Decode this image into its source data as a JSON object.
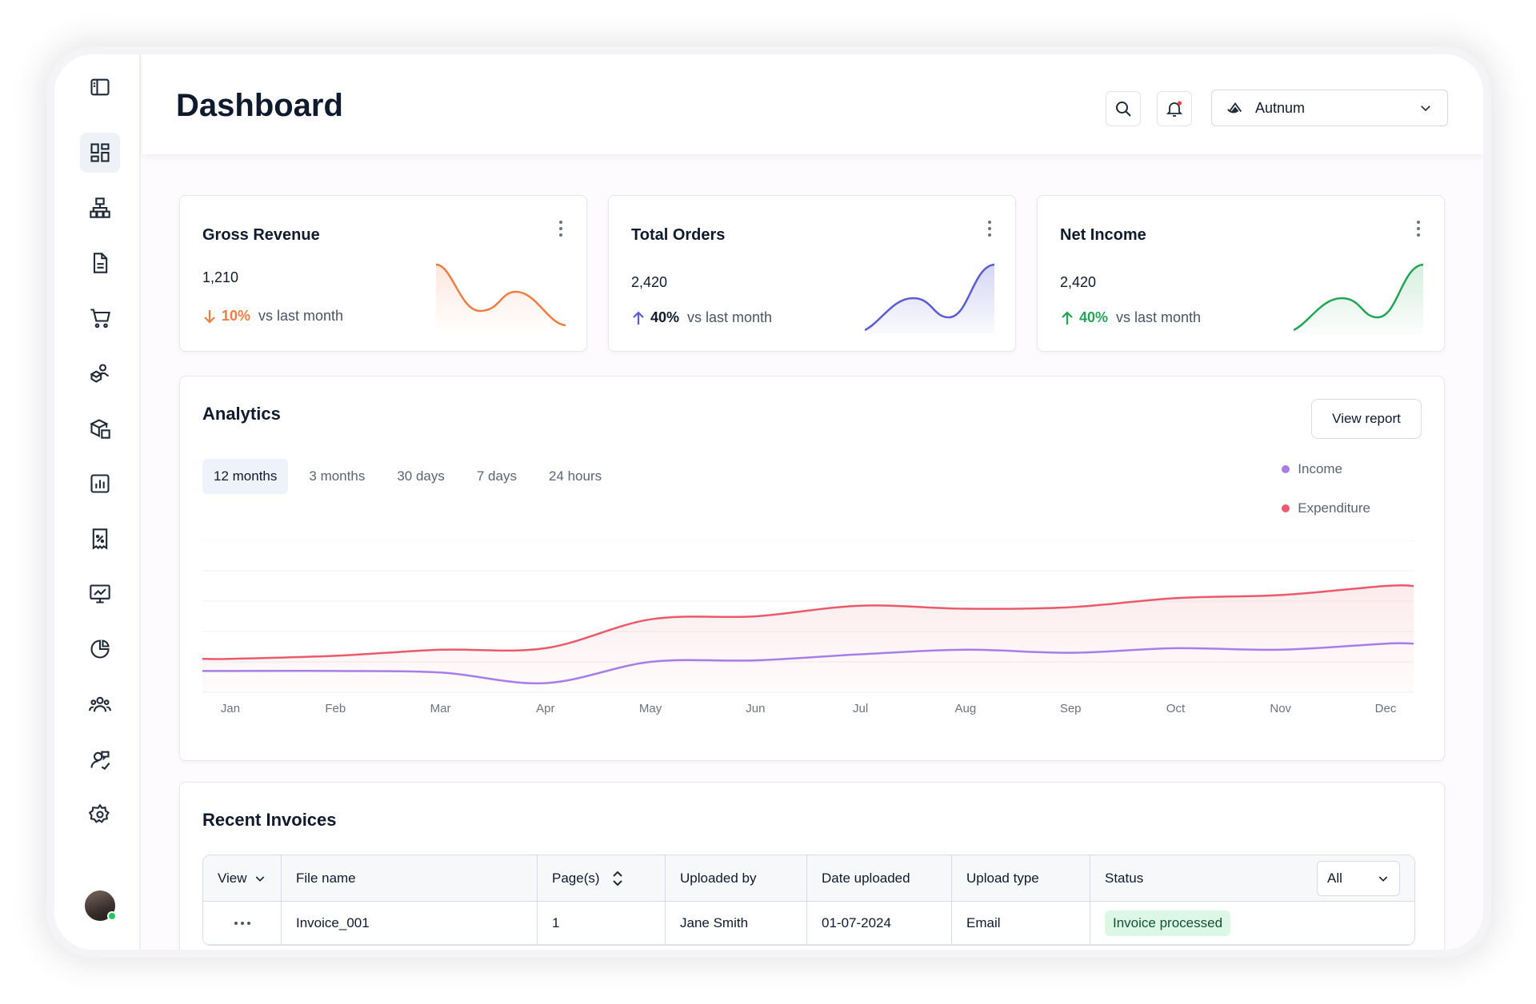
{
  "header": {
    "title": "Dashboard",
    "org_selector": {
      "value": "Autnum"
    },
    "notification_dot_color": "#ef4444"
  },
  "sidebar": {
    "items": [
      {
        "icon": "dashboard-icon",
        "active": true
      },
      {
        "icon": "hierarchy-icon"
      },
      {
        "icon": "document-icon"
      },
      {
        "icon": "cart-icon"
      },
      {
        "icon": "supplier-icon"
      },
      {
        "icon": "package-icon"
      },
      {
        "icon": "report-icon"
      },
      {
        "icon": "tax-receipt-icon"
      },
      {
        "icon": "presentation-icon"
      },
      {
        "icon": "pie-chart-icon"
      },
      {
        "icon": "team-icon"
      },
      {
        "icon": "customer-support-icon"
      },
      {
        "icon": "settings-icon"
      }
    ]
  },
  "kpis": [
    {
      "title": "Gross Revenue",
      "value": "1,210",
      "delta": "10%",
      "direction": "down",
      "comparison": "vs last month",
      "color": "#f07c42"
    },
    {
      "title": "Total Orders",
      "value": "2,420",
      "delta": "40%",
      "direction": "up",
      "comparison": "vs last month",
      "color": "#5b5bd6"
    },
    {
      "title": "Net Income",
      "value": "2,420",
      "delta": "40%",
      "direction": "up",
      "comparison": "vs last month",
      "color": "#22a555"
    }
  ],
  "analytics": {
    "title": "Analytics",
    "view_report_label": "View report",
    "tabs": [
      "12 months",
      "3 months",
      "30 days",
      "7 days",
      "24 hours"
    ],
    "active_tab": "12 months",
    "legend": [
      {
        "label": "Income",
        "color": "#a77ee8"
      },
      {
        "label": "Expenditure",
        "color": "#ea5a6a"
      }
    ]
  },
  "chart_data": {
    "type": "line",
    "title": "Analytics",
    "categories": [
      "Jan",
      "Feb",
      "Mar",
      "Apr",
      "May",
      "Jun",
      "Jul",
      "Aug",
      "Sep",
      "Oct",
      "Nov",
      "Dec"
    ],
    "series": [
      {
        "name": "Income",
        "color": "#a77ee8",
        "values": [
          14,
          14,
          13,
          6,
          20,
          21,
          25,
          28,
          26,
          29,
          28,
          32
        ]
      },
      {
        "name": "Expenditure",
        "color": "#ea5a6a",
        "values": [
          22,
          24,
          28,
          29,
          48,
          50,
          57,
          55,
          56,
          62,
          64,
          70
        ]
      }
    ],
    "ylim": [
      0,
      100
    ],
    "grid": true,
    "legend_position": "top-right"
  },
  "invoices": {
    "title": "Recent Invoices",
    "columns": {
      "view": "View",
      "file_name": "File name",
      "pages": "Page(s)",
      "uploaded_by": "Uploaded by",
      "date_uploaded": "Date uploaded",
      "upload_type": "Upload type",
      "status": "Status"
    },
    "status_filter": "All",
    "rows": [
      {
        "file_name": "Invoice_001",
        "pages": "1",
        "uploaded_by": "Jane Smith",
        "date_uploaded": "01-07-2024",
        "upload_type": "Email",
        "status": "Invoice processed"
      }
    ]
  }
}
